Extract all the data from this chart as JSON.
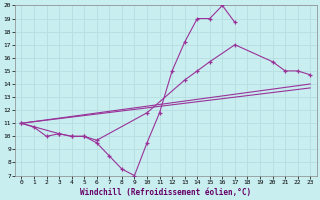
{
  "xlabel": "Windchill (Refroidissement éolien,°C)",
  "background_color": "#c8eef0",
  "grid_color": "#b8dfe2",
  "line_color": "#993399",
  "xlim": [
    -0.5,
    23.5
  ],
  "ylim": [
    7,
    20
  ],
  "xticks": [
    0,
    1,
    2,
    3,
    4,
    5,
    6,
    7,
    8,
    9,
    10,
    11,
    12,
    13,
    14,
    15,
    16,
    17,
    18,
    19,
    20,
    21,
    22,
    23
  ],
  "yticks": [
    7,
    8,
    9,
    10,
    11,
    12,
    13,
    14,
    15,
    16,
    17,
    18,
    19,
    20
  ],
  "curves": [
    {
      "x": [
        0,
        1,
        2,
        3,
        4,
        5,
        6,
        7,
        8,
        9,
        10,
        11,
        12,
        13,
        14,
        15,
        16,
        17
      ],
      "y": [
        11,
        10.7,
        10,
        10.2,
        10,
        10,
        9.5,
        8.5,
        7.5,
        7,
        9.5,
        11.8,
        15,
        17.2,
        19,
        19,
        20,
        18.7
      ],
      "has_markers": true
    },
    {
      "x": [
        0,
        3,
        4,
        5,
        6,
        10,
        13,
        14,
        15,
        17,
        20,
        21,
        22,
        23
      ],
      "y": [
        11,
        10.2,
        10,
        10,
        9.7,
        11.8,
        14.3,
        15,
        15.7,
        17,
        15.7,
        15,
        15,
        14.7
      ],
      "has_markers": true
    },
    {
      "x": [
        0,
        23
      ],
      "y": [
        11,
        14.0
      ],
      "has_markers": false
    },
    {
      "x": [
        0,
        23
      ],
      "y": [
        11,
        13.7
      ],
      "has_markers": false
    }
  ]
}
